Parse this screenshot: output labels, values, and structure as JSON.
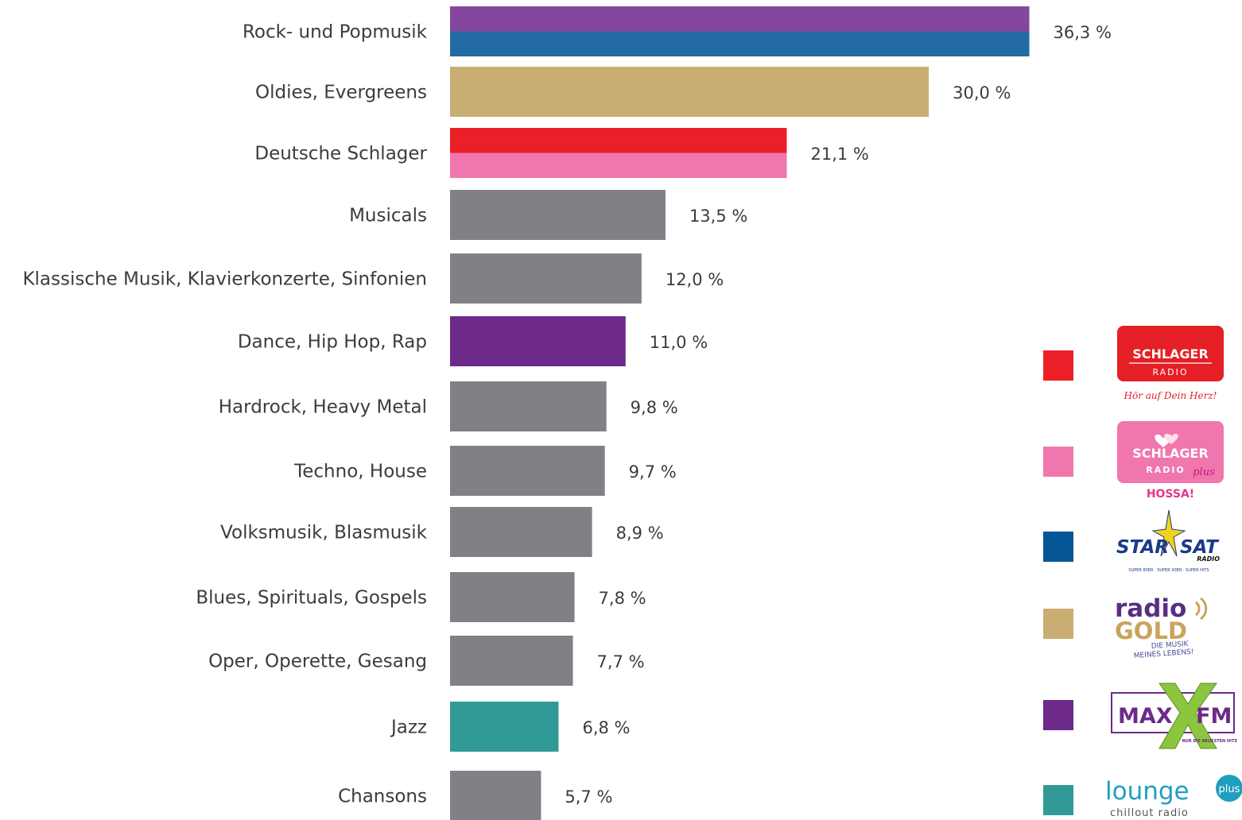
{
  "chart_data": {
    "type": "bar",
    "orientation": "horizontal",
    "title": "",
    "xlabel": "",
    "ylabel": "",
    "xlim": [
      0,
      40
    ],
    "grid": false,
    "legend_position": "right",
    "categories": [
      "Rock- und Popmusik",
      "Oldies, Evergreens",
      "Deutsche Schlager",
      "Musicals",
      "Klassische Musik, Klavierkonzerte, Sinfonien",
      "Dance, Hip Hop, Rap",
      "Hardrock, Heavy Metal",
      "Techno, House",
      "Volksmusik, Blasmusik",
      "Blues, Spirituals, Gospels",
      "Oper, Operette, Gesang",
      "Jazz",
      "Chansons"
    ],
    "values": [
      36.3,
      30.0,
      21.1,
      13.5,
      12.0,
      11.0,
      9.8,
      9.7,
      8.9,
      7.8,
      7.7,
      6.8,
      5.7
    ],
    "value_labels": [
      "36,3 %",
      "30,0 %",
      "21,1 %",
      "13,5 %",
      "12,0 %",
      "11,0 %",
      "9,8 %",
      "9,7 %",
      "8,9 %",
      "7,8 %",
      "7,7 %",
      "6,8 %",
      "5,7 %"
    ],
    "bar_colors": [
      [
        "#84479d",
        "#236ba3"
      ],
      [
        "#c9ad72"
      ],
      [
        "#eb1f28",
        "#f077ae"
      ],
      [
        "#808184"
      ],
      [
        "#808184"
      ],
      [
        "#6d2a8a"
      ],
      [
        "#808184"
      ],
      [
        "#808184"
      ],
      [
        "#808184"
      ],
      [
        "#808184"
      ],
      [
        "#808184"
      ],
      [
        "#329a96"
      ],
      [
        "#808184"
      ]
    ]
  },
  "legend": {
    "items": [
      {
        "color": "#eb1f28",
        "logo": "schlager-radio-logo"
      },
      {
        "color": "#f077ae",
        "logo": "schlager-radio-plus-logo"
      },
      {
        "color": "#035595",
        "logo": "star-sat-radio-logo"
      },
      {
        "color": "#c9ad72",
        "logo": "radio-gold-logo"
      },
      {
        "color": "#6d2a8a",
        "logo": "max-fm-logo"
      },
      {
        "color": "#329a96",
        "logo": "lounge-plus-logo"
      }
    ]
  },
  "logos": {
    "schlager_radio": {
      "line1": "SCHLAGER",
      "line2": "RADIO",
      "slogan": "Hör auf Dein Herz!"
    },
    "schlager_radio_plus": {
      "line1": "SCHLAGER",
      "line2": "RADIO",
      "plus": "plus",
      "slogan": "HOSSA!"
    },
    "star_sat": {
      "word1": "STAR",
      "word2": "SAT",
      "word3": "RADIO",
      "slogan": "SUPER 80ER · SUPER 90ER · SUPER HITS"
    },
    "radio_gold": {
      "word1": "radio",
      "word2": "GOLD",
      "slogan1": "DIE MUSIK",
      "slogan2": "MEINES LEBENS!"
    },
    "max_fm": {
      "word1": "MAX",
      "word2": "FM",
      "slogan": "NUR DIE NEUESTEN HITZ"
    },
    "lounge_plus": {
      "word1": "lounge",
      "plus": "plus",
      "slogan": "chillout radio"
    }
  }
}
